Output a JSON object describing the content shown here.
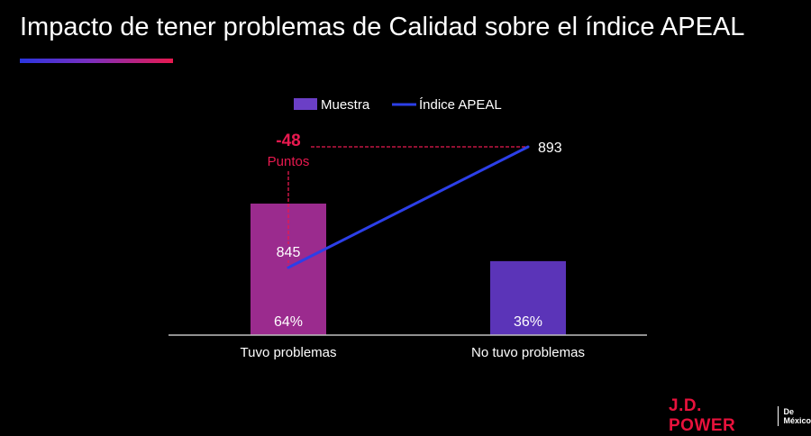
{
  "title": "Impacto de tener problemas de Calidad sobre el índice APEAL",
  "chart_data": {
    "type": "bar",
    "categories": [
      "Tuvo problemas",
      "No tuvo problemas"
    ],
    "series": [
      {
        "name": "Muestra",
        "kind": "bar",
        "values": [
          64,
          36
        ],
        "labels": [
          "64%",
          "36%"
        ],
        "colors": [
          "#9b2b8e",
          "#5b34b8"
        ]
      },
      {
        "name": "Índice APEAL",
        "kind": "line",
        "values": [
          845,
          893
        ],
        "labels": [
          "845",
          "893"
        ],
        "color": "#2c3fe8"
      }
    ],
    "annotation": {
      "value": "-48",
      "text": "Puntos",
      "color": "#e8194f"
    },
    "legend_position": "top",
    "grid": false
  },
  "branding": {
    "logo_main": "J.D. POWER",
    "logo_sub_1": "De",
    "logo_sub_2": "México",
    "logo_color": "#e8123c"
  }
}
